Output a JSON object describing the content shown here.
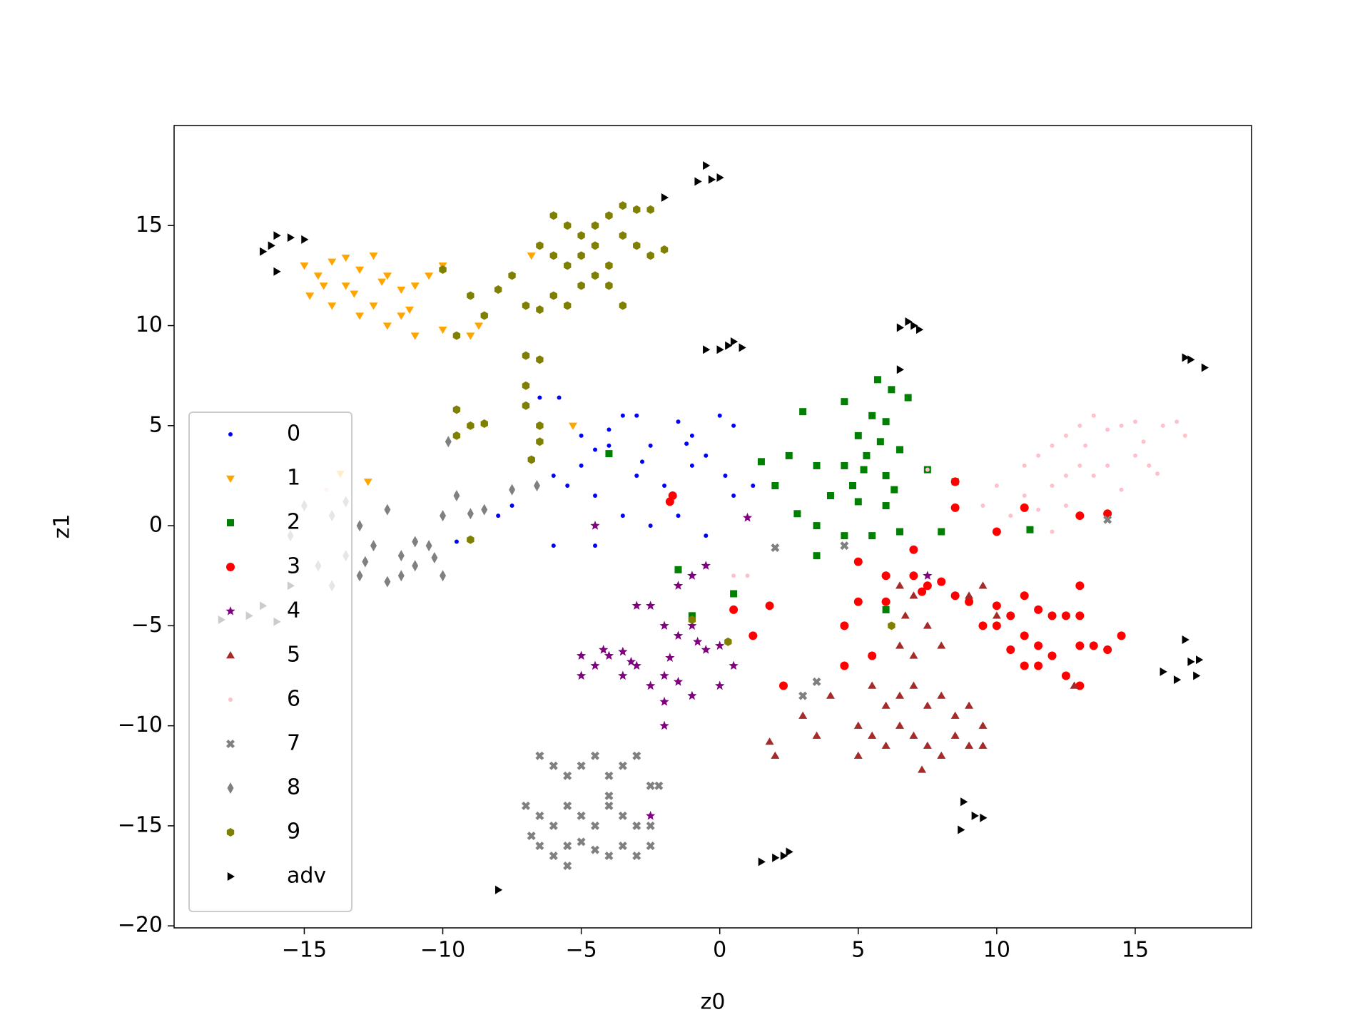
{
  "chart_data": {
    "type": "scatter",
    "xlabel": "z0",
    "ylabel": "z1",
    "xlim": [
      -19.7,
      19.2
    ],
    "ylim": [
      -20.1,
      20.0
    ],
    "xticks": [
      {
        "value": -15,
        "label": "−15"
      },
      {
        "value": -10,
        "label": "−10"
      },
      {
        "value": -5,
        "label": "−5"
      },
      0,
      5,
      10,
      15
    ],
    "yticks": [
      {
        "value": -20,
        "label": "−20"
      },
      {
        "value": -15,
        "label": "−15"
      },
      {
        "value": -10,
        "label": "−10"
      },
      {
        "value": -5,
        "label": "−5"
      },
      0,
      5,
      10,
      15
    ],
    "legend": "lower left",
    "series": [
      {
        "name": "0",
        "color": "#0000ff",
        "marker": "point",
        "x": [
          -6.5,
          -5.8,
          -5,
          -4.5,
          -4,
          -3.5,
          -3,
          -2.5,
          -1.5,
          -1,
          -0.5,
          0,
          0.5,
          -5.5,
          -6,
          -4.5,
          -3,
          -2,
          -1,
          0.2,
          -6,
          -4.5,
          -3.5,
          -2.5,
          -1.5,
          -0.5,
          -7.5,
          -8,
          -9.5,
          0.5,
          1.2,
          -5,
          -4,
          -2.8,
          -1.2
        ],
        "y": [
          6.4,
          6.4,
          4.5,
          3.8,
          4,
          5.5,
          5.5,
          4,
          5.2,
          4.5,
          3.5,
          5.5,
          5,
          2,
          2.5,
          1.5,
          2.5,
          2,
          3,
          2.5,
          -1,
          -1,
          0.5,
          0,
          0.5,
          -0.5,
          1,
          0.5,
          -0.8,
          1.5,
          2,
          3,
          4.8,
          3.2,
          4.1
        ]
      },
      {
        "name": "1",
        "color": "#ffa500",
        "marker": "tri-down",
        "x": [
          -15,
          -14.5,
          -14,
          -13.5,
          -13,
          -12.5,
          -12,
          -11.5,
          -11,
          -10.5,
          -10,
          -14.8,
          -14,
          -13,
          -12.5,
          -12,
          -11,
          -10,
          -9,
          -8.7,
          -13.5,
          -11.5,
          -12.7,
          -13.7,
          -5.3,
          -6.8,
          -14.3,
          -13.2,
          -12.2,
          -11.2
        ],
        "y": [
          13,
          12.5,
          13.2,
          13.4,
          12.8,
          13.5,
          12.5,
          11.8,
          12,
          12.5,
          13,
          11.5,
          11,
          10.5,
          11,
          10,
          9.5,
          9.8,
          9.5,
          10,
          12,
          10.5,
          2.2,
          2.6,
          5,
          13.5,
          12,
          11.6,
          12.2,
          10.8
        ]
      },
      {
        "name": "2",
        "color": "#008000",
        "marker": "square",
        "x": [
          5.7,
          6.2,
          6.8,
          4.5,
          5.5,
          6,
          5,
          5.8,
          6.5,
          4.5,
          5.2,
          6,
          3,
          1.5,
          2.5,
          3.5,
          2,
          4,
          5,
          6,
          2.8,
          3.5,
          4.5,
          5.5,
          6.5,
          3.5,
          7.5,
          8.5,
          8,
          11.2,
          -4,
          -1,
          0.5,
          6,
          -1.5,
          5.3,
          4.8,
          6.3
        ],
        "y": [
          7.3,
          6.8,
          6.4,
          6.2,
          5.5,
          5.2,
          4.5,
          4.2,
          3.8,
          3,
          2.8,
          2.5,
          5.7,
          3.2,
          3.5,
          3,
          2,
          1.5,
          1.2,
          1,
          0.6,
          0,
          -0.5,
          -0.5,
          -0.3,
          -1.5,
          2.8,
          2.2,
          -0.3,
          -0.2,
          3.6,
          -4.5,
          -3.4,
          -4.2,
          -2.2,
          3.5,
          2,
          1.8
        ]
      },
      {
        "name": "3",
        "color": "#ff0000",
        "marker": "circle",
        "x": [
          5,
          6,
          7,
          7.5,
          8,
          5,
          6,
          7.3,
          8.5,
          9,
          10,
          10.5,
          11,
          11.5,
          12,
          12.5,
          13,
          13,
          10,
          9.5,
          11,
          11.5,
          12,
          13,
          13.5,
          14,
          14.5,
          10.5,
          11.5,
          12.5,
          13,
          11,
          4.5,
          4.5,
          5.5,
          2.3,
          -1.7,
          -1.8,
          8.5,
          8.5,
          10,
          11,
          13,
          14,
          7,
          1.8,
          1.2,
          0.5
        ],
        "y": [
          -1.8,
          -2.5,
          -2.5,
          -3,
          -2.8,
          -3.8,
          -3.8,
          -3.3,
          -3.5,
          -3.8,
          -4,
          -4.5,
          -3.5,
          -4.2,
          -4.5,
          -4.5,
          -3,
          -4.5,
          -5,
          -5,
          -5.5,
          -6,
          -6.5,
          -6,
          -6,
          -6.2,
          -5.5,
          -6.2,
          -7,
          -7.5,
          -8,
          -7,
          -5,
          -7,
          -6.5,
          -8,
          1.5,
          1.2,
          2.2,
          0.9,
          -0.3,
          0.9,
          0.5,
          0.6,
          -1.2,
          -4,
          -5.5,
          -4.2
        ]
      },
      {
        "name": "4",
        "color": "#800080",
        "marker": "star",
        "x": [
          -5,
          -4.5,
          -4,
          -3.5,
          -3,
          -3,
          -2.5,
          -2,
          -1.5,
          -1,
          -0.5,
          0,
          0.5,
          -1.5,
          -1,
          -0.5,
          -2,
          -2.5,
          -1.5,
          -1,
          0,
          -5,
          -3.5,
          -2,
          -2,
          -4.5,
          1,
          7.5,
          -2.5,
          -4.2,
          -3.2,
          -1.8,
          -0.8
        ],
        "y": [
          -6.5,
          -7,
          -6.5,
          -6.3,
          -7,
          -4,
          -4,
          -5,
          -5.5,
          -5,
          -6.2,
          -6,
          -7,
          -3,
          -2.5,
          -2,
          -7.5,
          -8,
          -7.8,
          -8.5,
          -8,
          -7.5,
          -7.5,
          -8.8,
          -10,
          0,
          0.4,
          -2.5,
          -14.5,
          -6.2,
          -6.8,
          -6.6,
          -5.8
        ]
      },
      {
        "name": "5",
        "color": "#a52a2a",
        "marker": "tri-up",
        "x": [
          6.5,
          7,
          6.7,
          7.5,
          6.5,
          7,
          8,
          9,
          9.5,
          10,
          5.5,
          6,
          6.5,
          7,
          7.5,
          8,
          8.5,
          9,
          9.5,
          5,
          5.5,
          6,
          6.5,
          7,
          7.5,
          8,
          8.5,
          9,
          7.3,
          5,
          3.5,
          3,
          4,
          1.8,
          2,
          9.5,
          12.8
        ],
        "y": [
          -3,
          -3.5,
          -4.5,
          -5,
          -6,
          -6.5,
          -6,
          -3.5,
          -3,
          -4.5,
          -8,
          -9,
          -8.5,
          -8,
          -9,
          -8.5,
          -9.5,
          -9,
          -10,
          -10,
          -10.5,
          -11,
          -10,
          -10.5,
          -11,
          -11.5,
          -10.5,
          -11,
          -12.2,
          -11.5,
          -10.5,
          -9.5,
          -8.5,
          -10.8,
          -11.5,
          -11,
          -8
        ]
      },
      {
        "name": "6",
        "color": "#ffc0cb",
        "marker": "point",
        "x": [
          10,
          11,
          11.5,
          12,
          12.5,
          13,
          13.5,
          14,
          14.5,
          15,
          16,
          16.5,
          16.8,
          12,
          12.5,
          13,
          13.5,
          14,
          15,
          15.5,
          15.8,
          11,
          11.5,
          12.5,
          14.5,
          9.5,
          10.5,
          12,
          7.5,
          0.5,
          1,
          -14.2,
          13.2,
          15.3
        ],
        "y": [
          2,
          3,
          3.5,
          4,
          4.5,
          5,
          5.5,
          4.8,
          5,
          5.2,
          5,
          5.2,
          4.5,
          2,
          2.5,
          3,
          2.5,
          3,
          3.5,
          3,
          2.6,
          1.5,
          0.8,
          1,
          1.8,
          1,
          0.5,
          -0.3,
          2.8,
          -2.5,
          -2.5,
          1.8,
          4,
          4.2
        ]
      },
      {
        "name": "7",
        "color": "#808080",
        "marker": "x",
        "x": [
          -6.5,
          -6,
          -5.5,
          -5,
          -4.5,
          -4,
          -3.5,
          -3,
          -2.5,
          -7,
          -6.5,
          -6,
          -5.5,
          -5,
          -4.5,
          -4,
          -3.5,
          -3,
          -2.5,
          -6.5,
          -6,
          -5.5,
          -5,
          -4.5,
          -4,
          -3.5,
          -3,
          -2.5,
          -5.5,
          -4,
          -2.2,
          -6.8,
          3.5,
          2,
          4.5,
          14,
          3
        ],
        "y": [
          -11.5,
          -12,
          -12.5,
          -12,
          -11.5,
          -12.5,
          -12,
          -11.5,
          -13,
          -14,
          -14.5,
          -15,
          -14,
          -14.5,
          -15,
          -14,
          -14.5,
          -15,
          -15,
          -16,
          -16.5,
          -16,
          -15.8,
          -16.2,
          -16.5,
          -16,
          -16.5,
          -16,
          -17,
          -13.5,
          -13,
          -15.5,
          -7.8,
          -1.1,
          -1,
          0.3,
          -8.5
        ]
      },
      {
        "name": "8",
        "color": "#808080",
        "marker": "diamond",
        "x": [
          -15,
          -14,
          -13.5,
          -13,
          -12.5,
          -12,
          -11.5,
          -11,
          -10.5,
          -10,
          -9.5,
          -9,
          -12,
          -11.5,
          -10,
          -13.5,
          -14.5,
          -14,
          -13,
          -15.5,
          -8.5,
          -7.5,
          -9.8,
          -6.6,
          -12.8,
          -11,
          -10.3
        ],
        "y": [
          1,
          0.5,
          1.2,
          0,
          -1,
          0.8,
          -1.5,
          -2,
          -1,
          0.5,
          1.5,
          0.6,
          -2.8,
          -2.5,
          -2.5,
          -1.5,
          -2,
          -3,
          -2.5,
          -0.5,
          0.8,
          1.8,
          4.2,
          2,
          -1.8,
          -0.8,
          -1.6
        ]
      },
      {
        "name": "9",
        "color": "#808000",
        "marker": "hex",
        "x": [
          -6,
          -5.5,
          -5,
          -4.5,
          -4,
          -3.5,
          -3,
          -2.5,
          -6.5,
          -6,
          -5.5,
          -5,
          -4.5,
          -4,
          -3.5,
          -3,
          -2.5,
          -2,
          -7.5,
          -7,
          -6.5,
          -6,
          -5.5,
          -5,
          -4.5,
          -4,
          -3.5,
          -9,
          -8,
          -9.5,
          -8.5,
          -10,
          -7,
          -6.5,
          -7,
          -7,
          -6.5,
          -6.5,
          -9.5,
          -9,
          -8.5,
          -9.5,
          -6.8,
          -9,
          -1,
          0.3,
          6.2
        ],
        "y": [
          15.5,
          15,
          14.5,
          15,
          15.5,
          16,
          15.8,
          15.8,
          14,
          13.5,
          13,
          13.5,
          14,
          13,
          14.5,
          14,
          13.5,
          13.8,
          12.5,
          11,
          10.8,
          11.5,
          11,
          12,
          12.5,
          12,
          11,
          11.5,
          11.8,
          9.5,
          10.5,
          12.8,
          8.5,
          8.3,
          7,
          6,
          5,
          4.2,
          5.8,
          5,
          5.1,
          4.5,
          3.3,
          -0.7,
          -4.7,
          -5.8,
          -5
        ]
      },
      {
        "name": "adv",
        "color": "#000000",
        "marker": "tri-right",
        "x": [
          -16.5,
          -16.2,
          -16,
          -15.5,
          -15,
          -16,
          -2,
          -0.5,
          -0.8,
          -0.3,
          0,
          -0.5,
          0,
          0.3,
          0.5,
          0.8,
          6.5,
          7,
          7.2,
          6.8,
          6.5,
          16.8,
          17,
          17.5,
          16.8,
          17,
          17.2,
          16,
          16.5,
          17.3,
          8.8,
          9.2,
          9.5,
          8.7,
          1.5,
          2,
          2.3,
          2.5,
          -8,
          -18,
          -17,
          -16.5,
          -16,
          -15.5
        ],
        "y": [
          13.7,
          14,
          14.5,
          14.4,
          14.3,
          12.7,
          16.4,
          18,
          17.2,
          17.3,
          17.4,
          8.8,
          8.8,
          9,
          9.2,
          8.9,
          9.9,
          10,
          9.8,
          10.2,
          7.8,
          8.4,
          8.3,
          7.9,
          -5.7,
          -6.8,
          -7.5,
          -7.3,
          -7.7,
          -6.7,
          -13.8,
          -14.5,
          -14.6,
          -15.2,
          -16.8,
          -16.6,
          -16.5,
          -16.3,
          -18.2,
          -4.7,
          -4.5,
          -4,
          -4.8,
          -3
        ]
      }
    ]
  }
}
